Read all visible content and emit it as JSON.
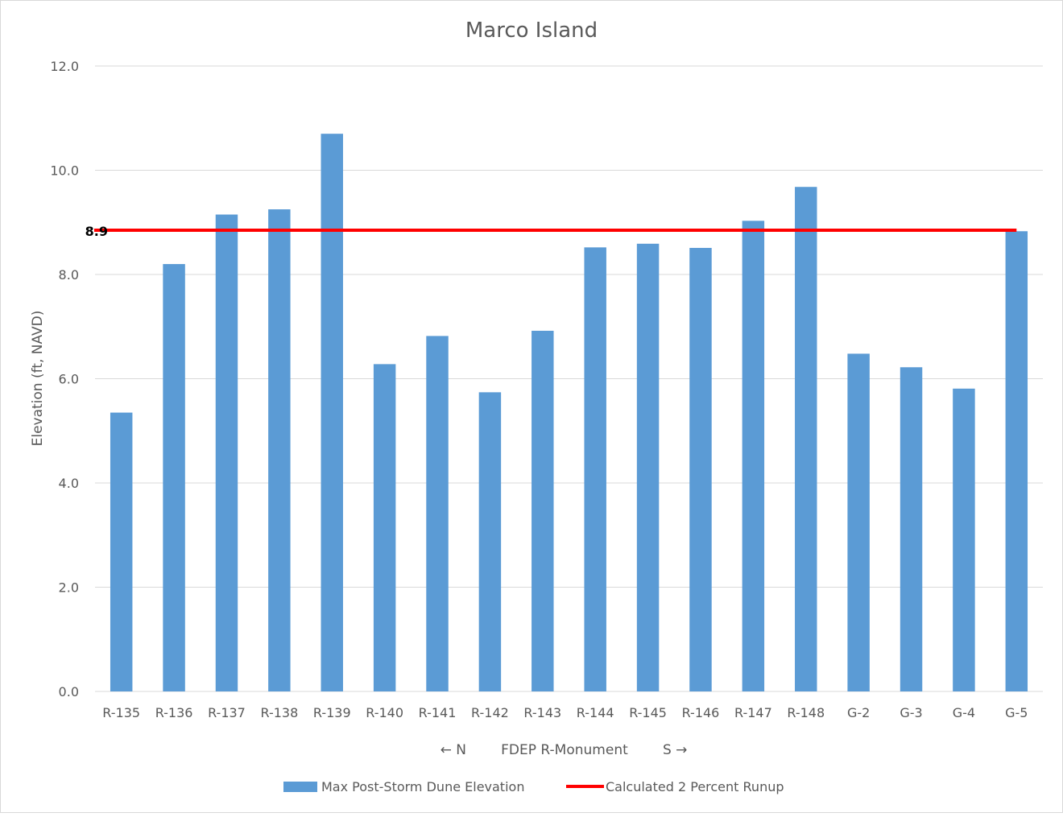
{
  "chart_data": {
    "type": "bar",
    "title": "Marco Island",
    "ylabel": "Elevation (ft, NAVD)",
    "xlabel": "← N        FDEP R-Monument        S →",
    "ylim": [
      0,
      12
    ],
    "yticks": [
      0,
      2,
      4,
      6,
      8,
      10,
      12
    ],
    "ytick_labels": [
      "0.0",
      "2.0",
      "4.0",
      "6.0",
      "8.0",
      "10.0",
      "12.0"
    ],
    "grid": true,
    "legend_position": "bottom",
    "categories": [
      "R-135",
      "R-136",
      "R-137",
      "R-138",
      "R-139",
      "R-140",
      "R-141",
      "R-142",
      "R-143",
      "R-144",
      "R-145",
      "R-146",
      "R-147",
      "R-148",
      "G-2",
      "G-3",
      "G-4",
      "G-5"
    ],
    "series": [
      {
        "name": "Max Post-Storm Dune Elevation",
        "type": "bar",
        "color": "#5B9BD5",
        "values": [
          5.35,
          8.2,
          9.15,
          9.25,
          10.7,
          6.28,
          6.82,
          5.74,
          6.92,
          8.52,
          8.59,
          8.51,
          9.03,
          9.68,
          6.48,
          6.22,
          5.81,
          8.83
        ]
      },
      {
        "name": "Calculated 2 Percent Runup",
        "type": "line",
        "color": "#FF0000",
        "value": 8.85
      }
    ],
    "annotation": {
      "text": "8.9"
    }
  }
}
